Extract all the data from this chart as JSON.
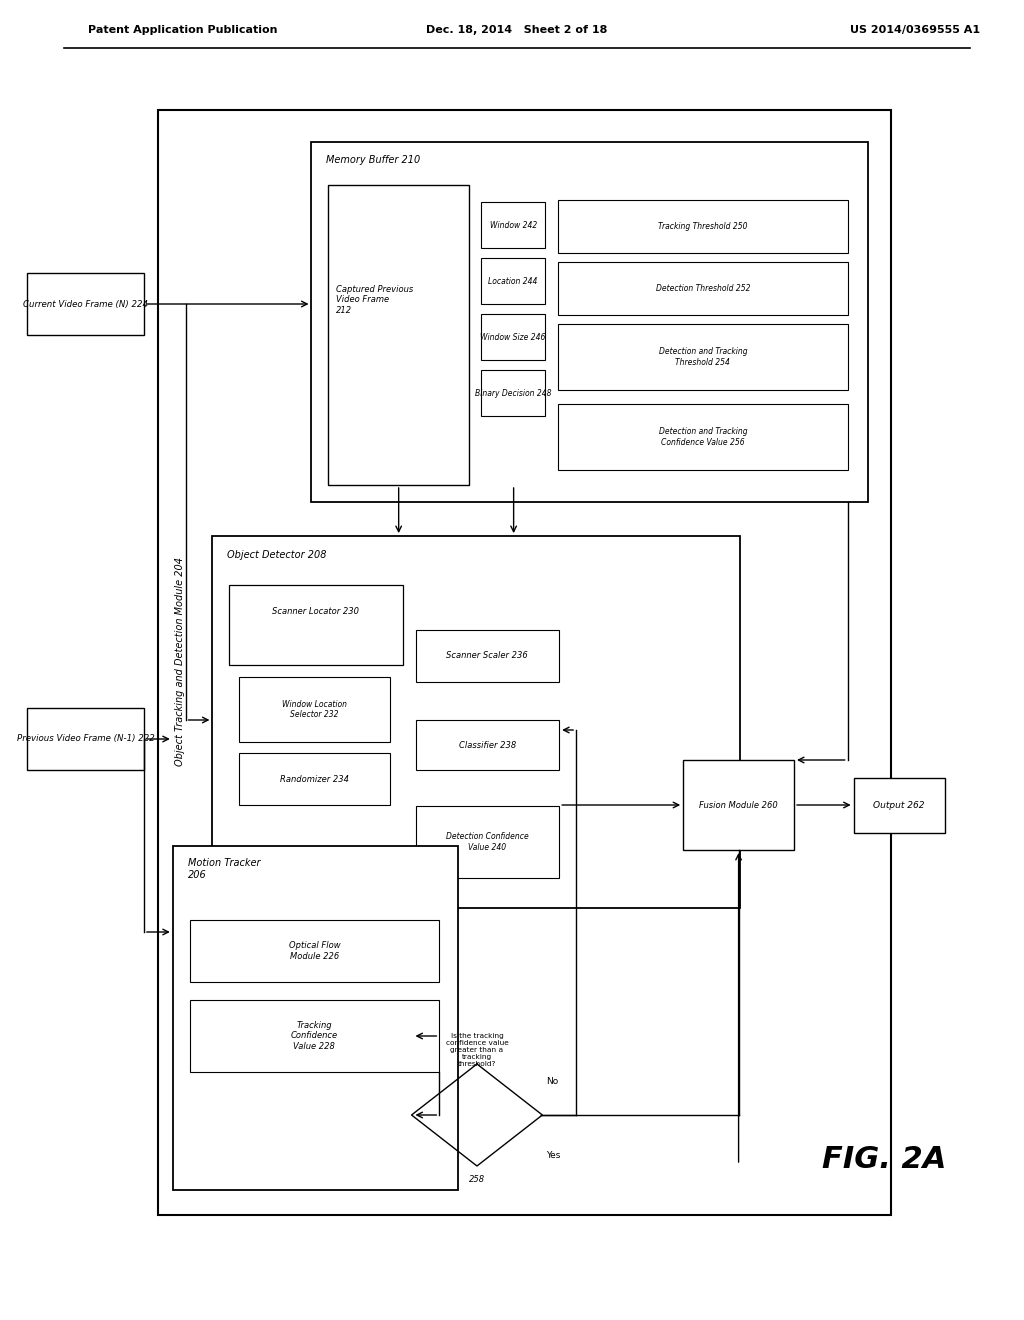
{
  "bg_color": "#ffffff",
  "header_left": "Patent Application Publication",
  "header_mid": "Dec. 18, 2014   Sheet 2 of 18",
  "header_right": "US 2014/0369555 A1",
  "fig_label": "FIG. 2A",
  "tracking_module_label": "Object Tracking and Detection Module 204",
  "current_frame_label": "Current Video Frame (N) 224",
  "prev_frame_label": "Previous Video Frame (N-1) 222",
  "memory_buffer_label": "Memory Buffer 210",
  "captured_label": "Captured Previous\nVideo Frame\n212",
  "motion_tracker_label": "Motion Tracker\n206",
  "object_detector_label": "Object Detector 208",
  "fusion_label": "Fusion Module 260",
  "output_label": "Output 262",
  "scanner_locator_label": "Scanner Locator 230",
  "window_loc_label": "Window Location\nSelector 232",
  "randomizer_label": "Randomizer 234",
  "scanner_scaler_label": "Scanner Scaler 236",
  "classifier_label": "Classifier 238",
  "detection_conf_label": "Detection Confidence\nValue 240",
  "optical_flow_label": "Optical Flow\nModule 226",
  "tracking_conf_label": "Tracking\nConfidence\nValue 228",
  "decision_question": "Is the tracking\nconfidence value\ngreater than a\ntracking\nthreshold?",
  "decision_num": "258",
  "window_label": "Window 242",
  "location_label": "Location 244",
  "window_size_label": "Window Size 246",
  "binary_decision_label": "Binary Decision 248",
  "tracking_threshold_label": "Tracking Threshold 250",
  "detection_threshold_label": "Detection Threshold 252",
  "det_track_threshold_label": "Detection and Tracking\nThreshold 254",
  "det_track_conf_label": "Detection and Tracking\nConfidence Value 256",
  "no_label": "No",
  "yes_label": "Yes"
}
